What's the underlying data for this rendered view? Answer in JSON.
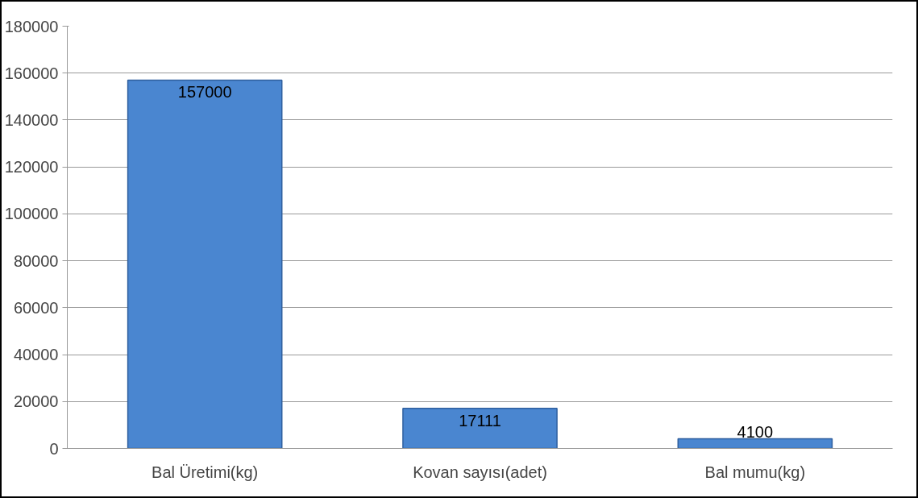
{
  "chart_data": {
    "type": "bar",
    "categories": [
      "Bal Üretimi(kg)",
      "Kovan sayısı(adet)",
      "Bal mumu(kg)"
    ],
    "values": [
      157000,
      17111,
      4100
    ],
    "color": "#4a86d0",
    "ylim": [
      0,
      180000
    ],
    "yticks": [
      0,
      20000,
      40000,
      60000,
      80000,
      100000,
      120000,
      140000,
      160000,
      180000
    ],
    "grid": "y",
    "data_labels": true
  }
}
